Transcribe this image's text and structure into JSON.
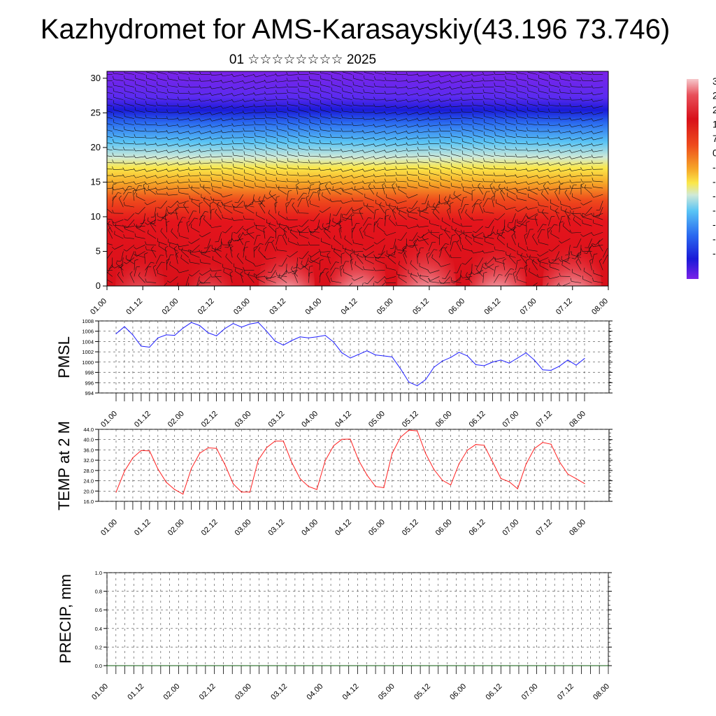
{
  "header": {
    "title": "Kazhydromet for AMS-Karasayskiy(43.196 73.746)",
    "subtitle": "01 ☆☆☆☆☆☆☆☆ 2025"
  },
  "colorbar_labels": [
    "3",
    "2",
    "2",
    "1",
    "7",
    "0",
    "-",
    "-",
    "-",
    "-",
    "-",
    "-",
    "-"
  ],
  "colors": {
    "pmsl_line": "#1f1fff",
    "temp_line": "#ff2020",
    "precip_line": "#0a5a0a"
  },
  "chart_data": [
    {
      "type": "heatmap",
      "name": "vertical-section",
      "ylim": [
        0,
        31
      ],
      "yticks": [
        "0",
        "5",
        "10",
        "15",
        "20",
        "25",
        "30"
      ],
      "xticks": [
        "01.00",
        "01.12",
        "02.00",
        "02.12",
        "03.00",
        "03.12",
        "04.00",
        "04.12",
        "05.00",
        "05.12",
        "06.00",
        "06.12",
        "07.00",
        "07.12",
        "08.00"
      ],
      "colorbar": "purple-blue-cyan-yellow-red-pink",
      "overlay": "wind barbs"
    },
    {
      "type": "line",
      "name": "pmsl",
      "ylabel": "PMSL",
      "ylim": [
        994,
        1008
      ],
      "yticks": [
        "994",
        "996",
        "998",
        "1000",
        "1002",
        "1004",
        "1006",
        "1008"
      ],
      "xticks": [
        "01.00",
        "01.12",
        "02.00",
        "02.12",
        "03.00",
        "03.12",
        "04.00",
        "04.12",
        "05.00",
        "05.12",
        "06.00",
        "06.12",
        "07.00",
        "07.12",
        "08.00"
      ],
      "values": [
        1005.5,
        1006.9,
        1005.3,
        1003.1,
        1002.9,
        1004.7,
        1005.3,
        1005.2,
        1006.6,
        1007.7,
        1007.1,
        1005.7,
        1005.1,
        1006.5,
        1007.5,
        1006.8,
        1007.4,
        1007.7,
        1006.0,
        1004.1,
        1003.3,
        1004.2,
        1004.9,
        1004.7,
        1004.9,
        1005.2,
        1003.9,
        1001.8,
        1000.8,
        1001.5,
        1002.2,
        1001.4,
        1001.2,
        1001.0,
        998.7,
        996.1,
        995.4,
        996.6,
        999.0,
        1000.2,
        1000.9,
        1001.9,
        1001.2,
        999.5,
        999.3,
        1000.0,
        1000.4,
        999.8,
        1000.8,
        1001.8,
        1000.4,
        998.5,
        998.4,
        999.2,
        1000.4,
        999.4,
        1000.7
      ]
    },
    {
      "type": "line",
      "name": "temp-2m",
      "ylabel": "TEMP at 2 M",
      "ylim": [
        16,
        44
      ],
      "yticks": [
        "16.0",
        "20.0",
        "24.0",
        "28.0",
        "32.0",
        "36.0",
        "40.0",
        "44.0"
      ],
      "xticks": [
        "01.00",
        "01.12",
        "02.00",
        "02.12",
        "03.00",
        "03.12",
        "04.00",
        "04.12",
        "05.00",
        "05.12",
        "06.00",
        "06.12",
        "07.00",
        "07.12",
        "08.00"
      ],
      "values": [
        19.6,
        27.7,
        32.9,
        35.8,
        35.6,
        28.6,
        23.4,
        20.6,
        18.8,
        28.8,
        34.7,
        36.8,
        36.6,
        30.4,
        22.8,
        19.6,
        19.6,
        32.1,
        36.9,
        39.4,
        39.4,
        31.1,
        24.8,
        21.8,
        20.6,
        31.8,
        37.6,
        40.1,
        40.2,
        31.9,
        26.2,
        21.8,
        21.3,
        34.6,
        40.9,
        43.7,
        43.4,
        34.6,
        28.4,
        24.2,
        22.4,
        30.6,
        35.9,
        38.1,
        37.8,
        31.4,
        24.9,
        23.6,
        20.9,
        30.4,
        36.5,
        38.9,
        38.2,
        31.4,
        26.6,
        24.8,
        22.9
      ]
    },
    {
      "type": "line",
      "name": "precip",
      "ylabel": "PRECIP, mm",
      "ylim": [
        0,
        1
      ],
      "yticks": [
        "0.0",
        "0.2",
        "0.4",
        "0.6",
        "0.8",
        "1.0"
      ],
      "xticks": [
        "01.00",
        "01.12",
        "02.00",
        "02.12",
        "03.00",
        "03.12",
        "04.00",
        "04.12",
        "05.00",
        "05.12",
        "06.00",
        "06.12",
        "07.00",
        "07.12",
        "08.00"
      ],
      "values": [
        0,
        0,
        0,
        0,
        0,
        0,
        0,
        0,
        0,
        0,
        0,
        0,
        0,
        0,
        0,
        0,
        0,
        0,
        0,
        0,
        0,
        0,
        0,
        0,
        0,
        0,
        0,
        0,
        0,
        0,
        0,
        0,
        0,
        0,
        0,
        0,
        0,
        0,
        0,
        0,
        0,
        0,
        0,
        0,
        0,
        0,
        0,
        0,
        0,
        0,
        0,
        0,
        0,
        0,
        0,
        0,
        0
      ]
    }
  ]
}
